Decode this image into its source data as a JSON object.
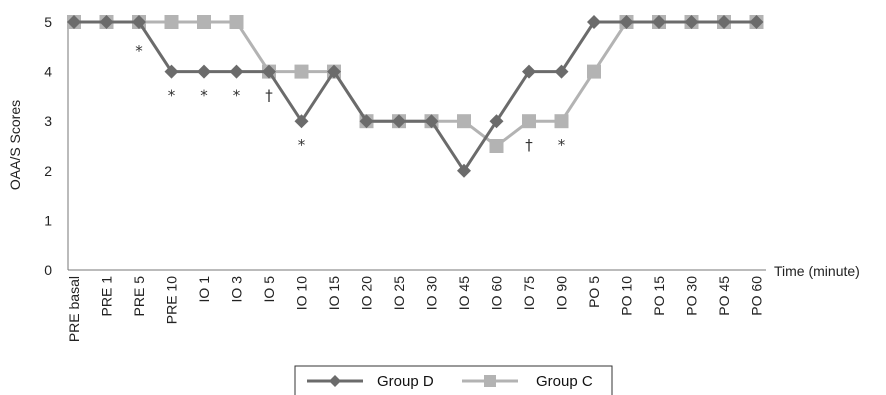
{
  "chart_data": {
    "type": "line",
    "title": "",
    "xlabel": "Time (minute)",
    "ylabel": "OAA/S Scores",
    "ylim": [
      0,
      5
    ],
    "yticks": [
      "0",
      "1",
      "2",
      "3",
      "4",
      "5"
    ],
    "categories": [
      "PRE basal",
      "PRE 1",
      "PRE 5",
      "PRE 10",
      "IO 1",
      "IO 3",
      "IO 5",
      "IO 10",
      "IO 15",
      "IO 20",
      "IO 25",
      "IO 30",
      "IO 45",
      "IO 60",
      "IO 75",
      "IO 90",
      "PO 5",
      "PO 10",
      "PO 15",
      "PO 30",
      "PO 45",
      "PO 60"
    ],
    "series": [
      {
        "name": "Group D",
        "color": "#6b6b6b",
        "marker": "diamond",
        "values": [
          5,
          5,
          5,
          4,
          4,
          4,
          4,
          3,
          4,
          3,
          3,
          3,
          2,
          3,
          4,
          4,
          5,
          5,
          5,
          5,
          5,
          5
        ]
      },
      {
        "name": "Group C",
        "color": "#b3b3b3",
        "marker": "square",
        "values": [
          5,
          5,
          5,
          5,
          5,
          5,
          4,
          4,
          4,
          3,
          3,
          3,
          3,
          2.5,
          3,
          3,
          4,
          5,
          5,
          5,
          5,
          5
        ]
      }
    ],
    "annotations": [
      {
        "text": "*",
        "category": "PRE 5",
        "y": 4.5
      },
      {
        "text": "*",
        "category": "PRE 10",
        "y": 3.6
      },
      {
        "text": "*",
        "category": "IO 1",
        "y": 3.6
      },
      {
        "text": "*",
        "category": "IO 3",
        "y": 3.6
      },
      {
        "text": "†",
        "category": "IO 5",
        "y": 3.6
      },
      {
        "text": "*",
        "category": "IO 10",
        "y": 2.6
      },
      {
        "text": "†",
        "category": "IO 75",
        "y": 2.6
      },
      {
        "text": "*",
        "category": "IO 90",
        "y": 2.6
      }
    ],
    "legend": "bottom",
    "grid": false
  }
}
